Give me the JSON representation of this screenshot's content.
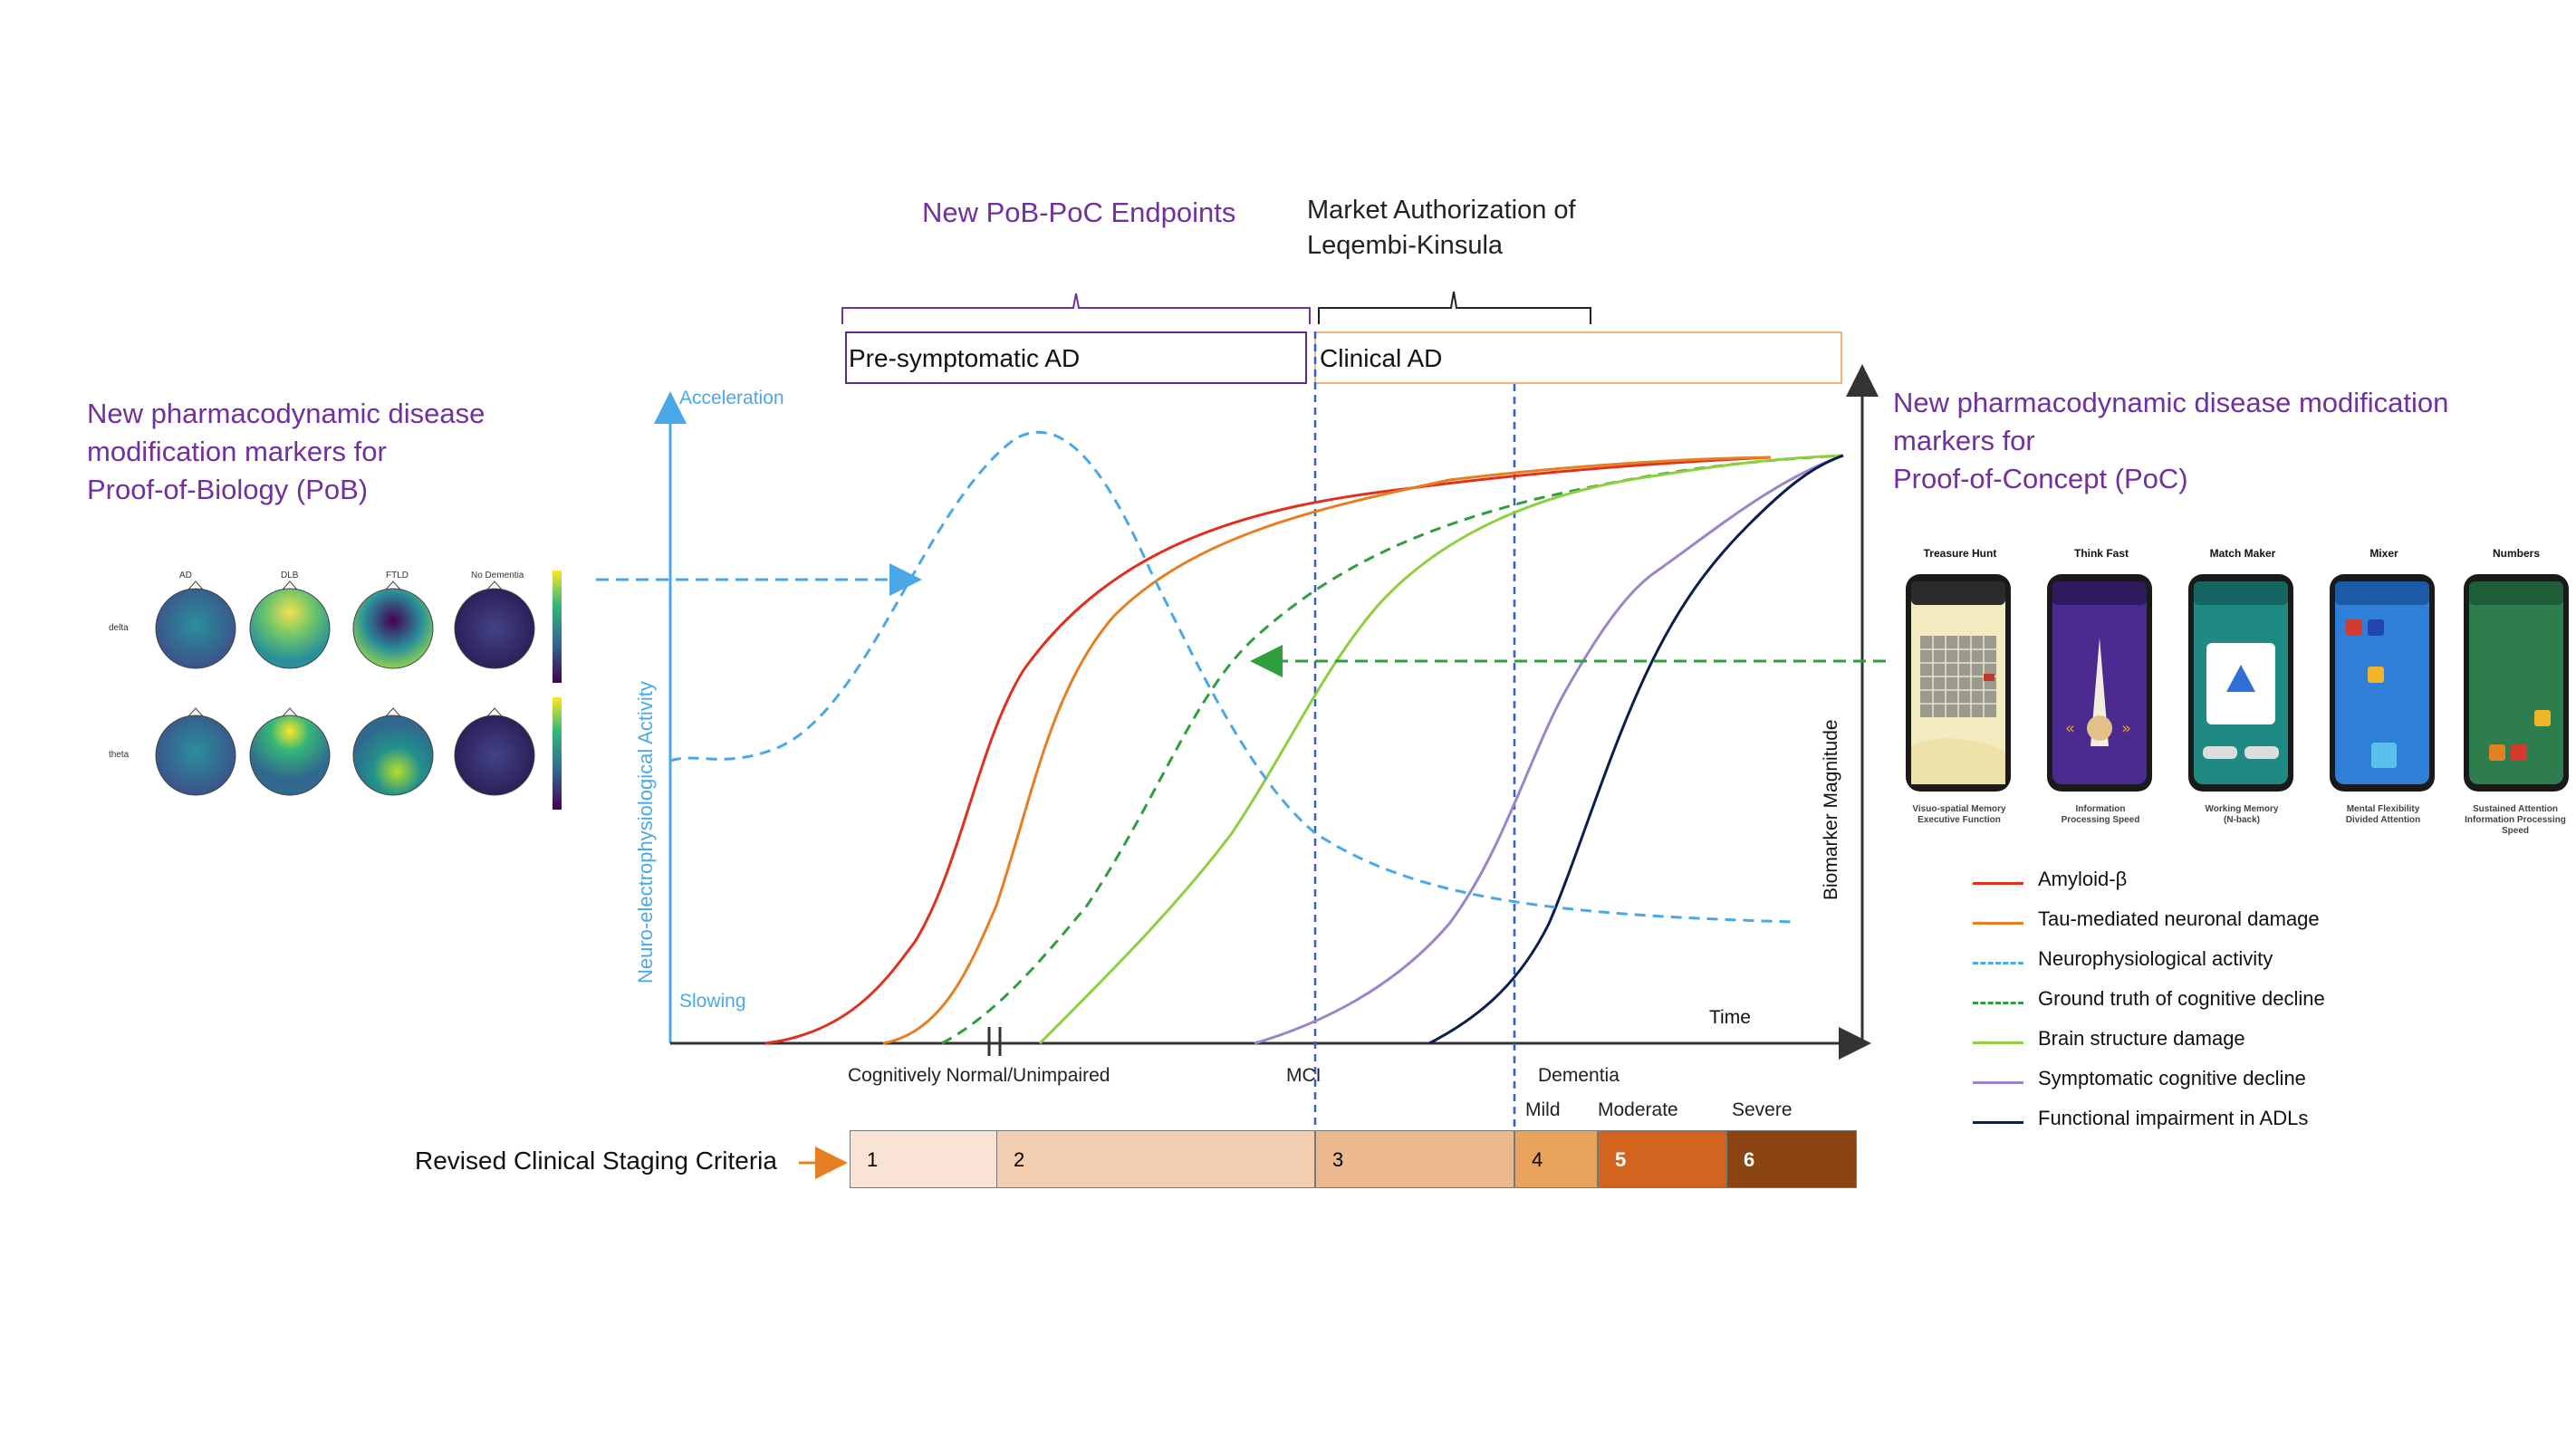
{
  "header": {
    "pob_poc_endpoints": "New PoB-PoC Endpoints",
    "market_auth_line1": "Market Authorization of",
    "market_auth_line2": "Leqembi-Kinsula"
  },
  "phases": {
    "presymptomatic": "Pre-symptomatic AD",
    "clinical": "Clinical AD"
  },
  "left_panel": {
    "line1": "New pharmacodynamic disease",
    "line2": "modification markers for",
    "line3": "Proof-of-Biology (PoB)",
    "topo_columns": [
      "AD",
      "DLB",
      "FTLD",
      "No Dementia"
    ],
    "topo_rows": [
      "delta",
      "theta"
    ]
  },
  "right_panel": {
    "line1": "New pharmacodynamic disease modification",
    "line2": "markers for",
    "line3": "Proof-of-Concept (PoC)",
    "apps": [
      {
        "title": "Treasure Hunt",
        "caption1": "Visuo-spatial Memory",
        "caption2": "Executive Function",
        "caption3": ""
      },
      {
        "title": "Think Fast",
        "caption1": "Information",
        "caption2": "Processing Speed",
        "caption3": ""
      },
      {
        "title": "Match Maker",
        "caption1": "Working Memory",
        "caption2": "(N-back)",
        "caption3": ""
      },
      {
        "title": "Mixer",
        "caption1": "Mental Flexibility",
        "caption2": "Divided Attention",
        "caption3": ""
      },
      {
        "title": "Numbers",
        "caption1": "Sustained Attention",
        "caption2": "Information Processing",
        "caption3": "Speed"
      }
    ]
  },
  "axes": {
    "left_top": "Acceleration",
    "left_bottom": "Slowing",
    "left_title": "Neuro-electrophysiological Activity",
    "right_title": "Biomarker Magnitude",
    "x_title": "Time"
  },
  "stage_labels": {
    "cn": "Cognitively Normal/Unimpaired",
    "mci": "MCI",
    "dementia": "Dementia",
    "mild": "Mild",
    "moderate": "Moderate",
    "severe": "Severe"
  },
  "staging": {
    "label": "Revised Clinical Staging Criteria",
    "cells": [
      "1",
      "2",
      "3",
      "4",
      "5",
      "6"
    ],
    "colors": [
      "#f9e3d6",
      "#f3cdb0",
      "#ebb98d",
      "#e9a35a",
      "#d2641f",
      "#8b4513"
    ]
  },
  "legend": [
    {
      "label": "Amyloid-β",
      "color": "#e0301e",
      "style": "solid"
    },
    {
      "label": "Tau-mediated neuronal damage",
      "color": "#e67e22",
      "style": "solid"
    },
    {
      "label": "Neurophysiological activity",
      "color": "#4aa8e8",
      "style": "dashed"
    },
    {
      "label": "Ground truth of cognitive decline",
      "color": "#2e9e3e",
      "style": "dashed"
    },
    {
      "label": "Brain structure damage",
      "color": "#8ecf3f",
      "style": "solid"
    },
    {
      "label": "Symptomatic cognitive decline",
      "color": "#9b84c9",
      "style": "solid"
    },
    {
      "label": "Functional impairment in ADLs",
      "color": "#0b1f4f",
      "style": "solid"
    }
  ]
}
